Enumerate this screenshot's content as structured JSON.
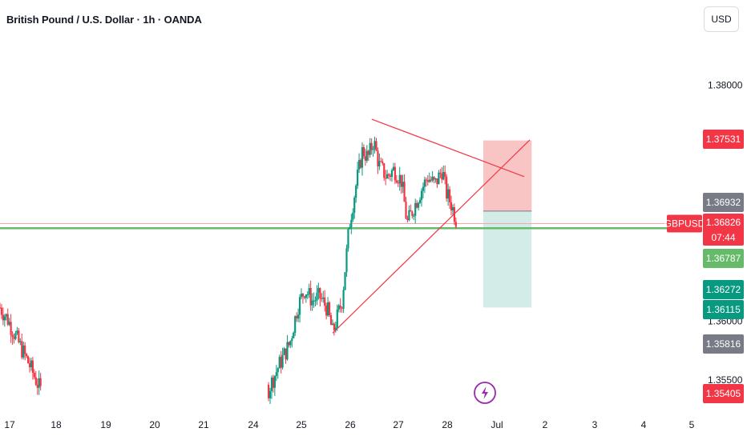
{
  "chart_data": {
    "type": "candlestick",
    "title": "British Pound / U.S. Dollar · 1h · OANDA",
    "currency": "USD",
    "symbol": "GBPUSD",
    "x_ticks": [
      "17",
      "18",
      "19",
      "20",
      "21",
      "24",
      "25",
      "26",
      "27",
      "28",
      "Jul",
      "2",
      "3",
      "4",
      "5"
    ],
    "y_ticks": [
      {
        "value": 1.38,
        "label": "1.38000"
      },
      {
        "value": 1.36,
        "label": "1.36000"
      },
      {
        "value": 1.355,
        "label": "1.35500"
      }
    ],
    "ylim": [
      1.3525,
      1.3845
    ],
    "x_range_days": [
      16.8,
      35.6
    ],
    "price_tags": [
      {
        "value": 1.37531,
        "label": "1.37531",
        "color": "#f23645"
      },
      {
        "value": 1.36932,
        "label": "1.36932",
        "color": "#787b86"
      },
      {
        "value": 1.36826,
        "label": "1.36826",
        "color": "#f23645",
        "countdown": "07:44"
      },
      {
        "value": 1.36787,
        "label": "1.36787",
        "color": "#66bb6a"
      },
      {
        "value": 1.36272,
        "label": "1.36272",
        "color": "#089981"
      },
      {
        "value": 1.36115,
        "label": "1.36115",
        "color": "#089981"
      },
      {
        "value": 1.35816,
        "label": "1.35816",
        "color": "#787b86"
      },
      {
        "value": 1.35405,
        "label": "1.35405",
        "color": "#f23645"
      }
    ],
    "horizontal_lines": [
      {
        "value": 1.36787,
        "color": "#66bb6a",
        "width": 2.5
      },
      {
        "value": 1.36826,
        "color": "#f4a7b3",
        "width": 1
      }
    ],
    "position": {
      "entry": 1.36932,
      "stop": 1.37531,
      "target": 1.36115,
      "x_start_day": 29.8,
      "x_end_day": 31.1
    },
    "trendlines": [
      {
        "x1": 26.8,
        "y1": 1.37711,
        "x2": 30.9,
        "y2": 1.37224,
        "color": "#f23645"
      },
      {
        "x1": 25.75,
        "y1": 1.35899,
        "x2": 31.05,
        "y2": 1.37535,
        "color": "#f23645"
      }
    ],
    "ohlc_path": [
      [
        16.8,
        1.36115
      ],
      [
        17.0,
        1.36019
      ],
      [
        17.3,
        1.35816
      ],
      [
        17.6,
        1.35622
      ],
      [
        17.9,
        1.35405
      ],
      [
        24.0,
        1.35405
      ],
      [
        24.3,
        1.35622
      ],
      [
        24.6,
        1.35816
      ],
      [
        24.8,
        1.36115
      ],
      [
        25.0,
        1.36272
      ],
      [
        25.2,
        1.36174
      ],
      [
        25.4,
        1.36207
      ],
      [
        25.6,
        1.36108
      ],
      [
        25.75,
        1.35899
      ],
      [
        26.0,
        1.36174
      ],
      [
        26.2,
        1.36826
      ],
      [
        26.4,
        1.37192
      ],
      [
        26.55,
        1.37448
      ],
      [
        26.7,
        1.37383
      ],
      [
        26.85,
        1.37529
      ],
      [
        27.0,
        1.37318
      ],
      [
        27.2,
        1.37221
      ],
      [
        27.4,
        1.37286
      ],
      [
        27.6,
        1.37188
      ],
      [
        27.75,
        1.36826
      ],
      [
        27.9,
        1.36941
      ],
      [
        28.1,
        1.37091
      ],
      [
        28.3,
        1.37221
      ],
      [
        28.5,
        1.37156
      ],
      [
        28.7,
        1.37286
      ],
      [
        28.8,
        1.37091
      ],
      [
        28.95,
        1.36982
      ],
      [
        29.1,
        1.36826
      ]
    ]
  }
}
